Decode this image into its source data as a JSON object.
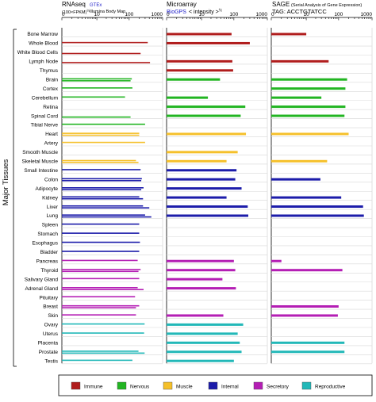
{
  "side_label": "Major Tissues",
  "colors": {
    "immune": "#b01c1c",
    "nervous": "#22b522",
    "muscle": "#f5c02a",
    "internal": "#1c1caa",
    "secretory": "#b41eb4",
    "reproductive": "#22b8b8"
  },
  "headers": {
    "rnaseq": {
      "title": "RNAseq",
      "subtitle": "(100×FPKM)",
      "exponent": "½",
      "source1": "GTEx",
      "source2": "Illumina Body Map"
    },
    "microarray": {
      "title": "Microarray",
      "source": "BioGPS",
      "subtitle": "< intensity >",
      "exponent": "½"
    },
    "sage": {
      "title": "SAGE",
      "subtitle": "(Serial Analysis of Gene Expression)",
      "tag": "TAG: ACCTGTATCC"
    }
  },
  "axes": {
    "rnaseq_ticks": [
      "0",
      "10",
      "100",
      "1000"
    ],
    "microarray_ticks": [
      "0",
      "10",
      "100",
      "1000"
    ],
    "sage_ticks": [
      "0",
      "10",
      "100",
      "1000"
    ]
  },
  "legend": [
    {
      "key": "immune",
      "label": "Immune"
    },
    {
      "key": "nervous",
      "label": "Nervous"
    },
    {
      "key": "muscle",
      "label": "Muscle"
    },
    {
      "key": "internal",
      "label": "Internal"
    },
    {
      "key": "secretory",
      "label": "Secretory"
    },
    {
      "key": "reproductive",
      "label": "Reproductive"
    }
  ],
  "chart_data": {
    "type": "bar",
    "orientation": "horizontal",
    "scale": "log (0, 10, 100, 1000)",
    "grid": true,
    "legend_position": "bottom",
    "tissues": [
      {
        "name": "Bone Marrow",
        "group": "immune",
        "rna": [
          null,
          null
        ],
        "micro": 85,
        "sage": 10
      },
      {
        "name": "Whole Blood",
        "group": "immune",
        "rna": [
          360,
          null
        ],
        "micro": 300,
        "sage": null
      },
      {
        "name": "White Blood Cells",
        "group": "immune",
        "rna": [
          null,
          220
        ],
        "micro": null,
        "sage": null
      },
      {
        "name": "Lymph Node",
        "group": "immune",
        "rna": [
          null,
          420
        ],
        "micro": 90,
        "sage": 50
      },
      {
        "name": "Thymus",
        "group": "immune",
        "rna": [
          null,
          null
        ],
        "micro": 95,
        "sage": null
      },
      {
        "name": "Brain",
        "group": "nervous",
        "rna": [
          120,
          110
        ],
        "micro": 38,
        "sage": 180
      },
      {
        "name": "Cortex",
        "group": "nervous",
        "rna": [
          125,
          null
        ],
        "micro": null,
        "sage": 160
      },
      {
        "name": "Cerebellum",
        "group": "nervous",
        "rna": [
          75,
          null
        ],
        "micro": 16,
        "sage": 30
      },
      {
        "name": "Retina",
        "group": "nervous",
        "rna": [
          null,
          null
        ],
        "micro": 220,
        "sage": 160
      },
      {
        "name": "Spinal Cord",
        "group": "nervous",
        "rna": [
          null,
          110
        ],
        "micro": 160,
        "sage": 150
      },
      {
        "name": "Tibial Nerve",
        "group": "nervous",
        "rna": [
          300,
          null
        ],
        "micro": null,
        "sage": null
      },
      {
        "name": "Heart",
        "group": "muscle",
        "rna": [
          200,
          200
        ],
        "micro": 230,
        "sage": 200
      },
      {
        "name": "Artery",
        "group": "muscle",
        "rna": [
          300,
          null
        ],
        "micro": null,
        "sage": null
      },
      {
        "name": "Smooth Muscle",
        "group": "muscle",
        "rna": [
          null,
          null
        ],
        "micro": 130,
        "sage": null
      },
      {
        "name": "Skeletal Muscle",
        "group": "muscle",
        "rna": [
          160,
          190
        ],
        "micro": 60,
        "sage": 45
      },
      {
        "name": "Small Intestine",
        "group": "internal",
        "rna": [
          220,
          null
        ],
        "micro": 120,
        "sage": null
      },
      {
        "name": "Colon",
        "group": "internal",
        "rna": [
          240,
          230
        ],
        "micro": 110,
        "sage": 28
      },
      {
        "name": "Adipocyte",
        "group": "internal",
        "rna": [
          270,
          230
        ],
        "micro": 170,
        "sage": null
      },
      {
        "name": "Kidney",
        "group": "internal",
        "rna": [
          200,
          260
        ],
        "micro": 60,
        "sage": 120
      },
      {
        "name": "Liver",
        "group": "internal",
        "rna": [
          260,
          400
        ],
        "micro": 260,
        "sage": 540
      },
      {
        "name": "Lung",
        "group": "internal",
        "rna": [
          300,
          460
        ],
        "micro": 270,
        "sage": 570
      },
      {
        "name": "Spleen",
        "group": "internal",
        "rna": [
          200,
          null
        ],
        "micro": null,
        "sage": null
      },
      {
        "name": "Stomach",
        "group": "internal",
        "rna": [
          200,
          null
        ],
        "micro": null,
        "sage": null
      },
      {
        "name": "Esophagus",
        "group": "internal",
        "rna": [
          210,
          null
        ],
        "micro": null,
        "sage": null
      },
      {
        "name": "Bladder",
        "group": "internal",
        "rna": [
          200,
          null
        ],
        "micro": null,
        "sage": null
      },
      {
        "name": "Pancreas",
        "group": "secretory",
        "rna": [
          180,
          null
        ],
        "micro": 100,
        "sage": 1
      },
      {
        "name": "Thyroid",
        "group": "secretory",
        "rna": [
          220,
          190
        ],
        "micro": 110,
        "sage": 130
      },
      {
        "name": "Salivary Gland",
        "group": "secretory",
        "rna": [
          200,
          null
        ],
        "micro": 45,
        "sage": null
      },
      {
        "name": "Adrenal Gland",
        "group": "secretory",
        "rna": [
          180,
          270
        ],
        "micro": 115,
        "sage": null
      },
      {
        "name": "Pituitary",
        "group": "secretory",
        "rna": [
          150,
          null
        ],
        "micro": null,
        "sage": null
      },
      {
        "name": "Breast",
        "group": "secretory",
        "rna": [
          200,
          160
        ],
        "micro": null,
        "sage": 100
      },
      {
        "name": "Skin",
        "group": "secretory",
        "rna": [
          160,
          null
        ],
        "micro": 48,
        "sage": 95
      },
      {
        "name": "Ovary",
        "group": "reproductive",
        "rna": [
          290,
          null
        ],
        "micro": 190,
        "sage": null
      },
      {
        "name": "Uterus",
        "group": "reproductive",
        "rna": [
          280,
          null
        ],
        "micro": 130,
        "sage": null
      },
      {
        "name": "Placenta",
        "group": "reproductive",
        "rna": [
          null,
          null
        ],
        "micro": 150,
        "sage": 150
      },
      {
        "name": "Prostate",
        "group": "reproductive",
        "rna": [
          190,
          290
        ],
        "micro": 170,
        "sage": 150
      },
      {
        "name": "Testis",
        "group": "reproductive",
        "rna": [
          125,
          null
        ],
        "micro": 100,
        "sage": null
      }
    ]
  }
}
